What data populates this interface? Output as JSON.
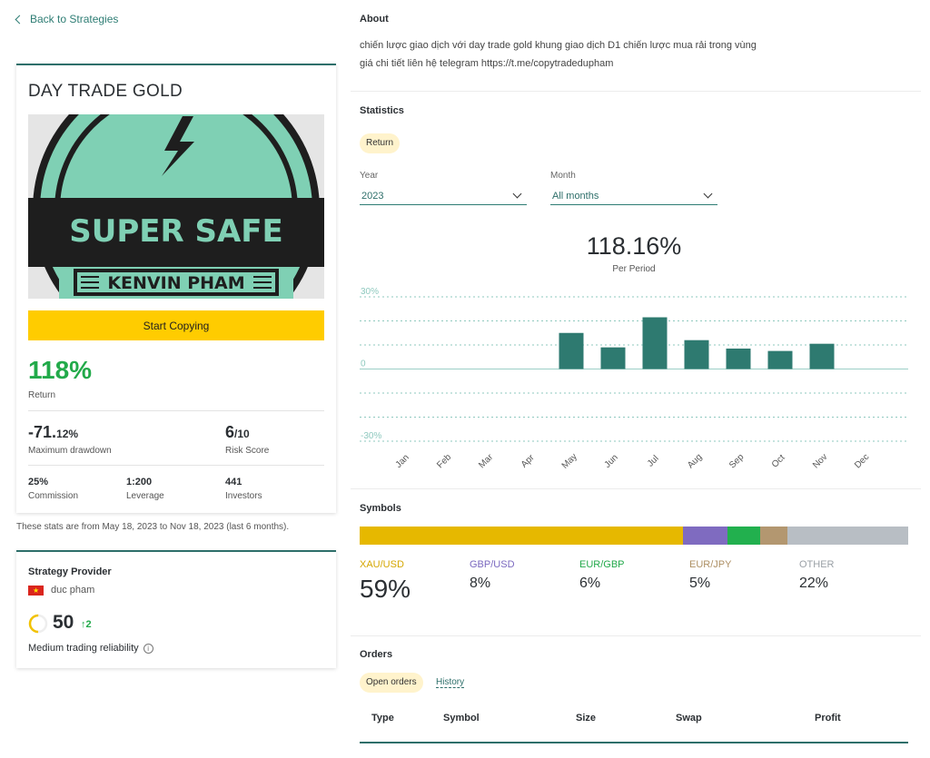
{
  "nav": {
    "back_label": "Back to Strategies"
  },
  "strategy": {
    "title": "DAY TRADE GOLD",
    "logo": {
      "line1": "SUPER SAFE",
      "line2": "KENVIN PHAM",
      "icon": "lightning-bolt-icon"
    },
    "start_button": "Start Copying",
    "return_value": "118%",
    "return_label": "Return",
    "max_drawdown_main": "-71.",
    "max_drawdown_decimal": "12%",
    "max_drawdown_label": "Maximum drawdown",
    "risk_score_main": "6",
    "risk_score_suffix": "/10",
    "risk_score_label": "Risk Score",
    "commission": "25%",
    "commission_label": "Commission",
    "leverage": "1:200",
    "leverage_label": "Leverage",
    "investors": "441",
    "investors_label": "Investors"
  },
  "stats_note": "These stats are from May 18, 2023 to Nov 18, 2023 (last 6 months).",
  "provider": {
    "title": "Strategy Provider",
    "flag_icon": "vietnam-flag-icon",
    "name": "duc pham",
    "score": "50",
    "score_change": "↑2",
    "reliability": "Medium trading reliability",
    "gauge_level": 0.5
  },
  "about": {
    "title": "About",
    "text": "chiến lược giao dịch với day trade gold khung giao dịch D1 chiến lược mua rải trong vùng giá chi tiết liên hệ telegram https://t.me/copytradedupham"
  },
  "statistics": {
    "title": "Statistics",
    "tab": "Return",
    "year_label": "Year",
    "year_value": "2023",
    "month_label": "Month",
    "month_value": "All months",
    "big_value": "118.16%",
    "big_label": "Per Period"
  },
  "chart_data": {
    "type": "bar",
    "categories": [
      "Jan",
      "Feb",
      "Mar",
      "Apr",
      "May",
      "Jun",
      "Jul",
      "Aug",
      "Sep",
      "Oct",
      "Nov",
      "Dec"
    ],
    "values": [
      null,
      null,
      null,
      null,
      15,
      9,
      21.5,
      12,
      8.5,
      7.5,
      10.5,
      null
    ],
    "ylim": [
      -30,
      30
    ],
    "y_ticks": [
      "30%",
      "0",
      "-30%"
    ],
    "grid": true,
    "bar_color": "#2e7a70"
  },
  "symbols": {
    "title": "Symbols",
    "items": [
      {
        "name": "XAU/USD",
        "value": "59%",
        "share": 59,
        "color": "#e6b800",
        "text_color": "#d4a600"
      },
      {
        "name": "GBP/USD",
        "value": "8%",
        "share": 8,
        "color": "#7f6bc0",
        "text_color": "#7a68bf"
      },
      {
        "name": "EUR/GBP",
        "value": "6%",
        "share": 6,
        "color": "#22b04e",
        "text_color": "#22a84a"
      },
      {
        "name": "EUR/JPY",
        "value": "5%",
        "share": 5,
        "color": "#b39770",
        "text_color": "#ad8f63"
      },
      {
        "name": "OTHER",
        "value": "22%",
        "share": 22,
        "color": "#b8bec4",
        "text_color": "#9aa0a6"
      }
    ]
  },
  "orders": {
    "title": "Orders",
    "tab_open": "Open orders",
    "tab_history": "History",
    "columns": [
      "Type",
      "Symbol",
      "Size",
      "Swap",
      "Profit"
    ]
  }
}
